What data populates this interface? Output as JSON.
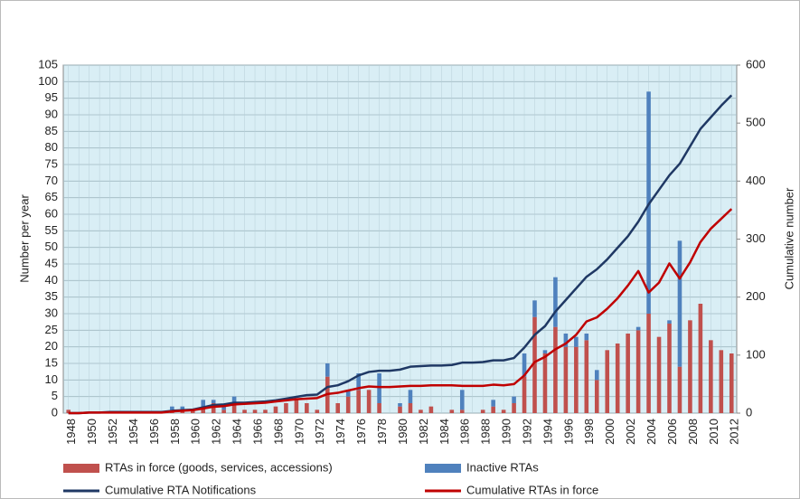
{
  "chart_data": {
    "type": "bar-line",
    "y_label": "Number per year",
    "y2_label": "Cumulative number",
    "categories": [
      "1948",
      null,
      "1950",
      null,
      "1952",
      null,
      "1954",
      null,
      "1956",
      null,
      "1958",
      null,
      "1960",
      null,
      "1962",
      null,
      "1964",
      null,
      "1966",
      null,
      "1968",
      null,
      "1970",
      null,
      "1972",
      null,
      "1974",
      null,
      "1976",
      null,
      "1978",
      null,
      "1980",
      null,
      "1982",
      null,
      "1984",
      null,
      "1986",
      null,
      "1988",
      null,
      "1990",
      null,
      "1992",
      null,
      "1994",
      null,
      "1996",
      null,
      "1998",
      null,
      "2000",
      null,
      "2002",
      null,
      "2004",
      null,
      "2006",
      null,
      "2008",
      null,
      "2010",
      null,
      "2012"
    ],
    "series": [
      {
        "name": "RTAs in force (goods, services, accessions)",
        "color": "#c0504d",
        "kind": "bar",
        "values": [
          1,
          0,
          0,
          0,
          0,
          0,
          0,
          0,
          0,
          0,
          1,
          1,
          1,
          2,
          3,
          1,
          3,
          1,
          1,
          1,
          2,
          3,
          4,
          3,
          1,
          11,
          3,
          5,
          7,
          7,
          3,
          0,
          2,
          3,
          1,
          2,
          0,
          1,
          1,
          0,
          1,
          2,
          1,
          3,
          11,
          29,
          18,
          26,
          20,
          20,
          22,
          10,
          19,
          21,
          24,
          25,
          30,
          23,
          27,
          14,
          28,
          33,
          22,
          19,
          18
        ]
      },
      {
        "name": "Inactive RTAs",
        "color": "#4f81bd",
        "kind": "bar",
        "values": [
          0,
          0,
          0,
          0,
          0,
          0,
          0,
          0,
          0,
          0,
          1,
          1,
          0,
          2,
          1,
          1,
          2,
          0,
          0,
          0,
          0,
          0,
          0,
          0,
          0,
          4,
          0,
          2,
          5,
          0,
          9,
          0,
          1,
          4,
          0,
          0,
          0,
          0,
          6,
          0,
          0,
          2,
          0,
          2,
          7,
          5,
          1,
          15,
          4,
          3,
          2,
          3,
          0,
          0,
          0,
          1,
          67,
          0,
          1,
          38,
          0,
          0,
          0,
          0,
          0
        ]
      },
      {
        "name": "Cumulative RTA Notifications",
        "color": "#1f3864",
        "kind": "line",
        "axis": "y2",
        "values": [
          0,
          0,
          1,
          1,
          2,
          2,
          2,
          2,
          2,
          2,
          4,
          5,
          6,
          10,
          14,
          15,
          18,
          18,
          19,
          20,
          22,
          25,
          28,
          31,
          32,
          45,
          48,
          55,
          65,
          71,
          73,
          73,
          75,
          80,
          81,
          82,
          82,
          83,
          87,
          87,
          88,
          91,
          91,
          95,
          113,
          135,
          150,
          175,
          195,
          215,
          235,
          248,
          265,
          285,
          305,
          330,
          360,
          385,
          410,
          430,
          460,
          490,
          510,
          530,
          548
        ]
      },
      {
        "name": "Cumulative RTAs in force",
        "color": "#c00000",
        "kind": "line",
        "axis": "y2",
        "values": [
          0,
          0,
          1,
          1,
          1,
          1,
          1,
          1,
          1,
          1,
          3,
          4,
          5,
          8,
          11,
          12,
          15,
          16,
          17,
          18,
          20,
          22,
          24,
          25,
          26,
          33,
          35,
          39,
          43,
          46,
          45,
          45,
          46,
          47,
          47,
          48,
          48,
          48,
          47,
          47,
          47,
          49,
          48,
          50,
          65,
          88,
          97,
          110,
          120,
          135,
          158,
          165,
          180,
          198,
          220,
          245,
          208,
          225,
          258,
          232,
          260,
          295,
          318,
          335,
          352
        ]
      }
    ],
    "ylim": [
      0,
      105
    ],
    "yticks": [
      0,
      5,
      10,
      15,
      20,
      25,
      30,
      35,
      40,
      45,
      50,
      55,
      60,
      65,
      70,
      75,
      80,
      85,
      90,
      95,
      100,
      105
    ],
    "y2lim": [
      0,
      600
    ],
    "y2ticks": [
      0,
      100,
      200,
      300,
      400,
      500,
      600
    ],
    "grid": true
  }
}
